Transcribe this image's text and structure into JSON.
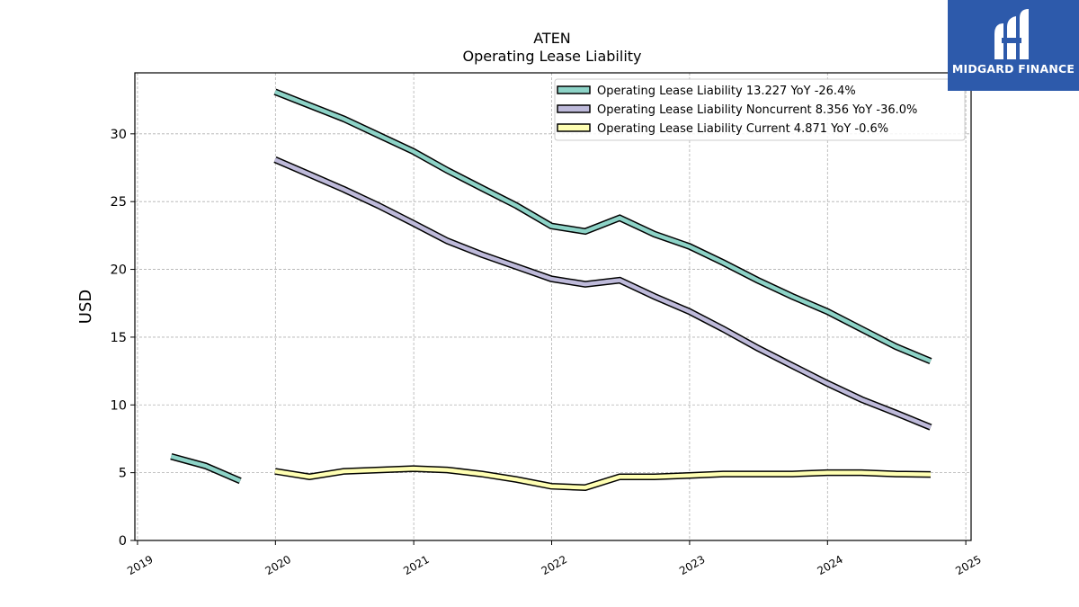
{
  "brand": {
    "name": "MIDGARD FINANCE",
    "bg_color": "#2d5aab"
  },
  "chart_data": {
    "type": "line",
    "title": "ATEN",
    "subtitle": "Operating Lease Liability",
    "xlabel": "",
    "ylabel": "USD",
    "x_ticks": [
      "2019",
      "2020",
      "2021",
      "2022",
      "2023",
      "2024",
      "2025"
    ],
    "y_ticks": [
      0,
      5,
      10,
      15,
      20,
      25,
      30
    ],
    "xlim": [
      "2018-12-25",
      "2025-01-15"
    ],
    "ylim": [
      0,
      34.5
    ],
    "grid": true,
    "legend_position": "top-right",
    "series": [
      {
        "name": "Operating Lease Liability  13.227 YoY -26.4%",
        "color": "#8dd3c7",
        "segments": [
          [
            {
              "x": "2019-03-31",
              "y": 6.2
            },
            {
              "x": "2019-06-30",
              "y": 5.5
            },
            {
              "x": "2019-09-30",
              "y": 4.4
            }
          ],
          [
            {
              "x": "2019-12-31",
              "y": 33.1
            },
            {
              "x": "2020-03-31",
              "y": 32.1
            },
            {
              "x": "2020-06-30",
              "y": 31.1
            },
            {
              "x": "2020-09-30",
              "y": 29.9
            },
            {
              "x": "2020-12-31",
              "y": 28.7
            },
            {
              "x": "2021-03-31",
              "y": 27.3
            },
            {
              "x": "2021-06-30",
              "y": 26.0
            },
            {
              "x": "2021-09-30",
              "y": 24.7
            },
            {
              "x": "2021-12-31",
              "y": 23.2
            },
            {
              "x": "2022-03-31",
              "y": 22.8
            },
            {
              "x": "2022-06-30",
              "y": 23.8
            },
            {
              "x": "2022-09-30",
              "y": 22.6
            },
            {
              "x": "2022-12-31",
              "y": 21.7
            },
            {
              "x": "2023-03-31",
              "y": 20.5
            },
            {
              "x": "2023-06-30",
              "y": 19.2
            },
            {
              "x": "2023-09-30",
              "y": 18.0
            },
            {
              "x": "2023-12-31",
              "y": 16.9
            },
            {
              "x": "2024-03-31",
              "y": 15.6
            },
            {
              "x": "2024-06-30",
              "y": 14.3
            },
            {
              "x": "2024-09-30",
              "y": 13.227
            }
          ]
        ]
      },
      {
        "name": "Operating Lease Liability Noncurrent  8.356 YoY -36.0%",
        "color": "#bebada",
        "segments": [
          [
            {
              "x": "2019-12-31",
              "y": 28.1
            },
            {
              "x": "2020-03-31",
              "y": 27.0
            },
            {
              "x": "2020-06-30",
              "y": 25.9
            },
            {
              "x": "2020-09-30",
              "y": 24.7
            },
            {
              "x": "2020-12-31",
              "y": 23.4
            },
            {
              "x": "2021-03-31",
              "y": 22.1
            },
            {
              "x": "2021-06-30",
              "y": 21.1
            },
            {
              "x": "2021-09-30",
              "y": 20.2
            },
            {
              "x": "2021-12-31",
              "y": 19.3
            },
            {
              "x": "2022-03-31",
              "y": 18.9
            },
            {
              "x": "2022-06-30",
              "y": 19.2
            },
            {
              "x": "2022-09-30",
              "y": 18.0
            },
            {
              "x": "2022-12-31",
              "y": 16.9
            },
            {
              "x": "2023-03-31",
              "y": 15.6
            },
            {
              "x": "2023-06-30",
              "y": 14.2
            },
            {
              "x": "2023-09-30",
              "y": 12.9
            },
            {
              "x": "2023-12-31",
              "y": 11.6
            },
            {
              "x": "2024-03-31",
              "y": 10.4
            },
            {
              "x": "2024-06-30",
              "y": 9.4
            },
            {
              "x": "2024-09-30",
              "y": 8.356
            }
          ]
        ]
      },
      {
        "name": "Operating Lease Liability Current  4.871 YoY -0.6%",
        "color": "#ffffb3",
        "segments": [
          [
            {
              "x": "2019-12-31",
              "y": 5.1
            },
            {
              "x": "2020-03-31",
              "y": 4.7
            },
            {
              "x": "2020-06-30",
              "y": 5.1
            },
            {
              "x": "2020-09-30",
              "y": 5.2
            },
            {
              "x": "2020-12-31",
              "y": 5.3
            },
            {
              "x": "2021-03-31",
              "y": 5.2
            },
            {
              "x": "2021-06-30",
              "y": 4.9
            },
            {
              "x": "2021-09-30",
              "y": 4.5
            },
            {
              "x": "2021-12-31",
              "y": 4.0
            },
            {
              "x": "2022-03-31",
              "y": 3.9
            },
            {
              "x": "2022-06-30",
              "y": 4.7
            },
            {
              "x": "2022-09-30",
              "y": 4.7
            },
            {
              "x": "2022-12-31",
              "y": 4.8
            },
            {
              "x": "2023-03-31",
              "y": 4.9
            },
            {
              "x": "2023-06-30",
              "y": 4.9
            },
            {
              "x": "2023-09-30",
              "y": 4.9
            },
            {
              "x": "2023-12-31",
              "y": 5.0
            },
            {
              "x": "2024-03-31",
              "y": 5.0
            },
            {
              "x": "2024-06-30",
              "y": 4.9
            },
            {
              "x": "2024-09-30",
              "y": 4.871
            }
          ]
        ]
      }
    ]
  }
}
